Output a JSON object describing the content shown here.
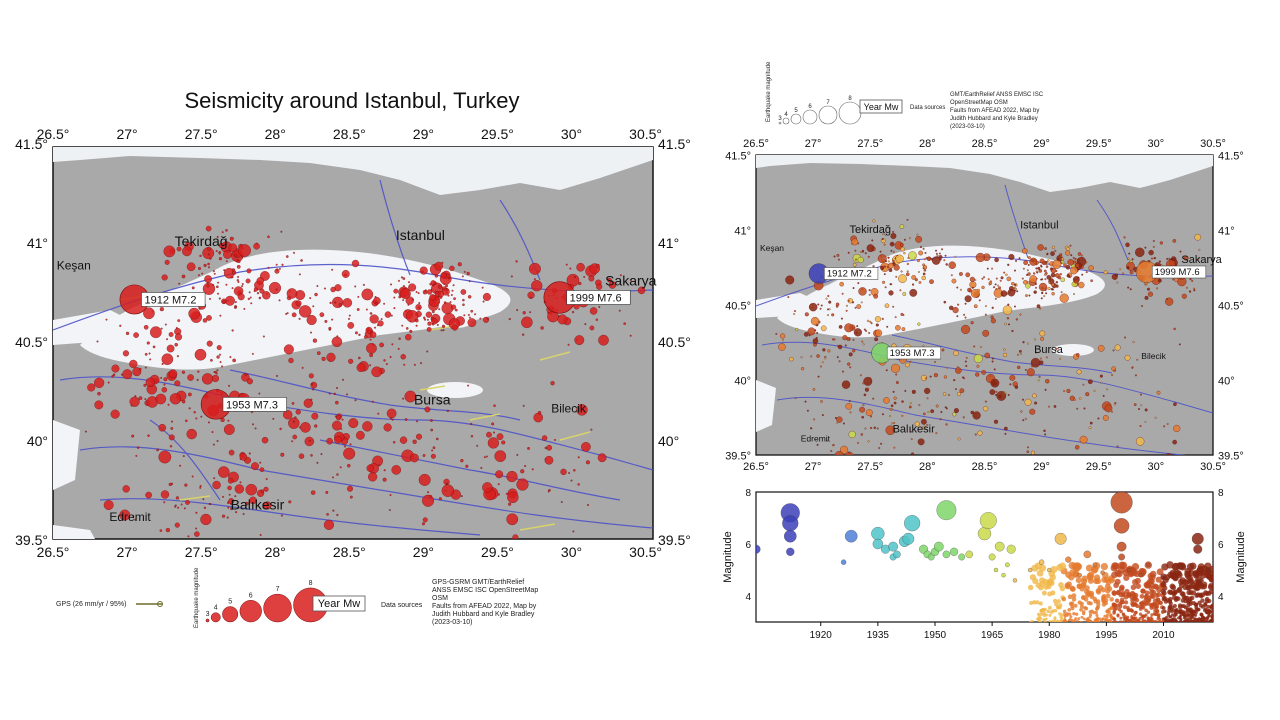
{
  "left_map": {
    "title": "Seismicity around Istanbul, Turkey",
    "lon_ticks": [
      "26.5°",
      "27°",
      "27.5°",
      "28°",
      "28.5°",
      "29°",
      "29.5°",
      "30°",
      "30.5°"
    ],
    "lat_ticks": [
      "39.5°",
      "40°",
      "40.5°",
      "41°",
      "41.5°"
    ],
    "cities": [
      {
        "name": "Tekirdağ",
        "lon": 27.5,
        "lat": 40.98
      },
      {
        "name": "Istanbul",
        "lon": 28.98,
        "lat": 41.01
      },
      {
        "name": "Sakarya",
        "lon": 30.4,
        "lat": 40.78
      },
      {
        "name": "Keşan",
        "lon": 26.64,
        "lat": 40.86
      },
      {
        "name": "Bursa",
        "lon": 29.06,
        "lat": 40.18
      },
      {
        "name": "Bilecik",
        "lon": 29.98,
        "lat": 40.14
      },
      {
        "name": "Edremit",
        "lon": 27.02,
        "lat": 39.59
      },
      {
        "name": "Balıkesir",
        "lon": 27.88,
        "lat": 39.65
      }
    ],
    "quakes": [
      {
        "label": "1912 M7.2",
        "lon": 27.05,
        "lat": 40.71,
        "mag": 7.2
      },
      {
        "label": "1999 M7.6",
        "lon": 29.92,
        "lat": 40.72,
        "mag": 7.6
      },
      {
        "label": "1953 M7.3",
        "lon": 27.6,
        "lat": 40.18,
        "mag": 7.3
      }
    ],
    "legend": {
      "gps_label": "GPS (26 mm/yr / 95%)",
      "mag_axis_label": "Earthquake magnitude",
      "mag_values": [
        "3",
        "4",
        "5",
        "6",
        "7",
        "8"
      ],
      "year_box": "Year Mw",
      "sources_title": "Data sources",
      "sources_lines": [
        "GPS-GSRM GMT/EarthRelief",
        "ANSS EMSC ISC OpenStreetMap",
        "OSM",
        "Faults from AFEAD 2022, Map by",
        "Judith Hubbard and Kyle Bradley",
        "(2023-03-10)"
      ]
    }
  },
  "right_map": {
    "lon_ticks": [
      "26.5°",
      "27°",
      "27.5°",
      "28°",
      "28.5°",
      "29°",
      "29.5°",
      "30°",
      "30.5°"
    ],
    "lat_ticks": [
      "39.5°",
      "40°",
      "40.5°",
      "41°",
      "41.5°"
    ],
    "cities": [
      {
        "name": "Tekirdağ",
        "lon": 27.5,
        "lat": 40.98
      },
      {
        "name": "Istanbul",
        "lon": 28.98,
        "lat": 41.01
      },
      {
        "name": "Sakarya",
        "lon": 30.4,
        "lat": 40.78
      },
      {
        "name": "Keşan",
        "lon": 26.64,
        "lat": 40.86
      },
      {
        "name": "Bursa",
        "lon": 29.06,
        "lat": 40.18
      },
      {
        "name": "Bilecik",
        "lon": 29.98,
        "lat": 40.14
      },
      {
        "name": "Edremit",
        "lon": 27.02,
        "lat": 39.59
      },
      {
        "name": "Balıkesir",
        "lon": 27.88,
        "lat": 39.65
      }
    ],
    "quakes": [
      {
        "label": "1912 M7.2",
        "lon": 27.05,
        "lat": 40.71,
        "mag": 7.2
      },
      {
        "label": "1999 M7.6",
        "lon": 29.92,
        "lat": 40.72,
        "mag": 7.6
      },
      {
        "label": "1953 M7.3",
        "lon": 27.6,
        "lat": 40.18,
        "mag": 7.3
      }
    ],
    "legend": {
      "mag_axis_label": "Earthquake magnitude",
      "mag_values": [
        "3",
        "4",
        "5",
        "6",
        "7",
        "8"
      ],
      "year_box": "Year Mw",
      "sources_title": "Data sources",
      "sources_lines": [
        "GMT/EarthRelief ANSS EMSC ISC",
        "OpenStreetMap OSM",
        "Faults from AFEAD 2022, Map by",
        "Judith Hubbard and Kyle Bradley",
        "(2023-03-10)"
      ]
    }
  },
  "chart_data": {
    "type": "scatter",
    "title": "",
    "xlabel": "",
    "ylabel": "Magnitude",
    "ylabel_right": "Magnitude",
    "x_ticks": [
      1920,
      1935,
      1950,
      1965,
      1980,
      1995,
      2010
    ],
    "y_ticks": [
      4,
      6,
      8
    ],
    "xlim": [
      1903,
      2023
    ],
    "ylim": [
      3,
      8
    ],
    "points": [
      {
        "x": 1903,
        "y": 5.8
      },
      {
        "x": 1912,
        "y": 7.2
      },
      {
        "x": 1912,
        "y": 6.8
      },
      {
        "x": 1912,
        "y": 6.3
      },
      {
        "x": 1912,
        "y": 5.7
      },
      {
        "x": 1926,
        "y": 5.3
      },
      {
        "x": 1928,
        "y": 6.3
      },
      {
        "x": 1935,
        "y": 6.4
      },
      {
        "x": 1935,
        "y": 6.0
      },
      {
        "x": 1937,
        "y": 5.8
      },
      {
        "x": 1939,
        "y": 5.9
      },
      {
        "x": 1939,
        "y": 5.5
      },
      {
        "x": 1940,
        "y": 5.6
      },
      {
        "x": 1942,
        "y": 6.1
      },
      {
        "x": 1943,
        "y": 6.2
      },
      {
        "x": 1944,
        "y": 6.8
      },
      {
        "x": 1947,
        "y": 5.8
      },
      {
        "x": 1948,
        "y": 5.6
      },
      {
        "x": 1949,
        "y": 5.5
      },
      {
        "x": 1950,
        "y": 5.7
      },
      {
        "x": 1951,
        "y": 5.9
      },
      {
        "x": 1953,
        "y": 7.3
      },
      {
        "x": 1953,
        "y": 5.6
      },
      {
        "x": 1955,
        "y": 5.7
      },
      {
        "x": 1957,
        "y": 5.5
      },
      {
        "x": 1959,
        "y": 5.6
      },
      {
        "x": 1963,
        "y": 6.4
      },
      {
        "x": 1964,
        "y": 6.9
      },
      {
        "x": 1965,
        "y": 5.5
      },
      {
        "x": 1966,
        "y": 5.0
      },
      {
        "x": 1967,
        "y": 5.9
      },
      {
        "x": 1968,
        "y": 4.8
      },
      {
        "x": 1969,
        "y": 5.2
      },
      {
        "x": 1970,
        "y": 5.8
      },
      {
        "x": 1971,
        "y": 4.6
      },
      {
        "x": 1975,
        "y": 5.0
      },
      {
        "x": 1978,
        "y": 5.3
      },
      {
        "x": 1980,
        "y": 5.0
      },
      {
        "x": 1983,
        "y": 6.2
      },
      {
        "x": 1985,
        "y": 5.4
      },
      {
        "x": 1988,
        "y": 4.8
      },
      {
        "x": 1990,
        "y": 5.6
      },
      {
        "x": 1992,
        "y": 5.2
      },
      {
        "x": 1994,
        "y": 4.9
      },
      {
        "x": 1999,
        "y": 7.6
      },
      {
        "x": 1999,
        "y": 6.7
      },
      {
        "x": 1999,
        "y": 5.9
      },
      {
        "x": 1999,
        "y": 5.5
      },
      {
        "x": 2001,
        "y": 5.0
      },
      {
        "x": 2004,
        "y": 4.8
      },
      {
        "x": 2006,
        "y": 5.2
      },
      {
        "x": 2010,
        "y": 4.7
      },
      {
        "x": 2014,
        "y": 5.1
      },
      {
        "x": 2019,
        "y": 6.2
      },
      {
        "x": 2019,
        "y": 5.8
      },
      {
        "x": 2020,
        "y": 4.6
      },
      {
        "x": 2022,
        "y": 5.0
      }
    ]
  },
  "colors": {
    "land": "#a9a9a9",
    "sea": "#f4f6f8",
    "quake_red": "#d81e1e",
    "fault_blue": "#4d52c9",
    "gps_yellow": "#d9d36b"
  }
}
